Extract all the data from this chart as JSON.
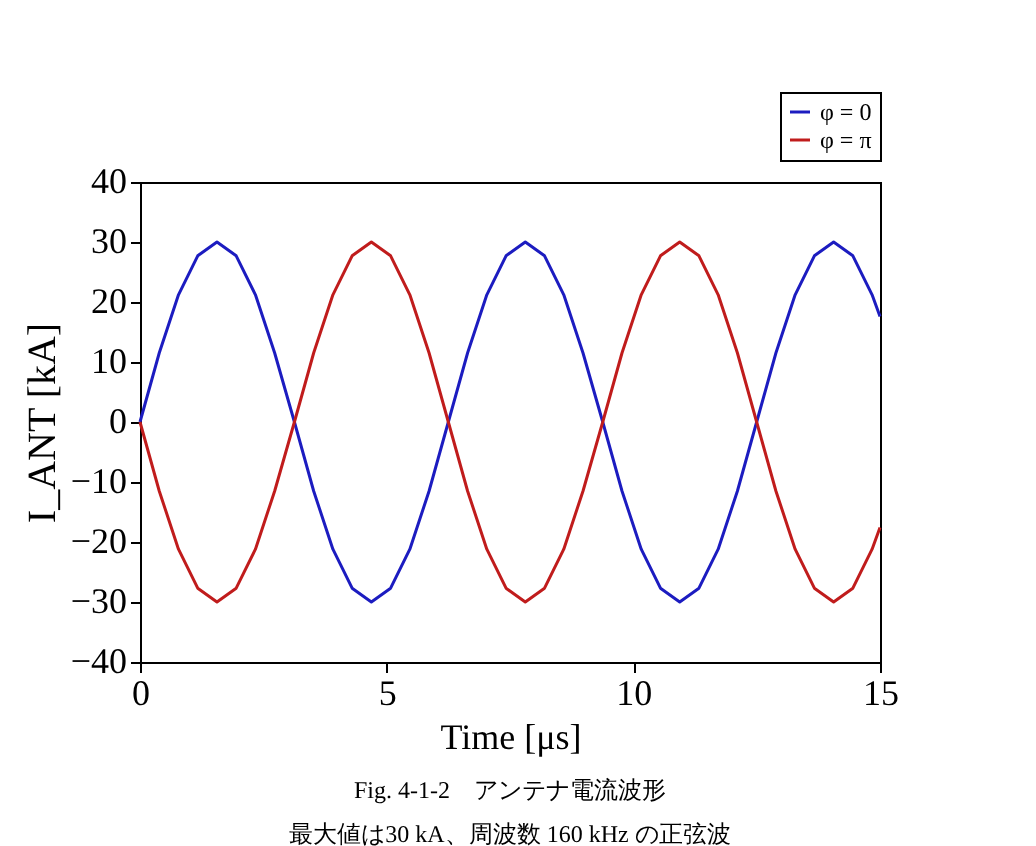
{
  "chart_data": {
    "type": "line",
    "xlabel": "Time [μs]",
    "ylabel": "I_ANT [kA]",
    "x": [
      0,
      0.39,
      0.78,
      1.17,
      1.56,
      1.95,
      2.34,
      2.73,
      3.13,
      3.52,
      3.91,
      4.3,
      4.69,
      5.08,
      5.47,
      5.86,
      6.25,
      6.64,
      7.03,
      7.42,
      7.81,
      8.2,
      8.59,
      8.98,
      9.38,
      9.77,
      10.16,
      10.55,
      10.94,
      11.33,
      11.72,
      12.11,
      12.5,
      12.89,
      13.28,
      13.67,
      14.06,
      14.45,
      14.84,
      15
    ],
    "series": [
      {
        "name": "φ = 0",
        "color": "#1c1cc0",
        "values": [
          0,
          11.5,
          21.2,
          27.7,
          30,
          27.7,
          21.2,
          11.5,
          0,
          -11.5,
          -21.2,
          -27.7,
          -30,
          -27.7,
          -21.2,
          -11.5,
          0,
          11.5,
          21.2,
          27.7,
          30,
          27.7,
          21.2,
          11.5,
          0,
          -11.5,
          -21.2,
          -27.7,
          -30,
          -27.7,
          -21.2,
          -11.5,
          0,
          11.5,
          21.2,
          27.7,
          30,
          27.7,
          21.2,
          17.6
        ]
      },
      {
        "name": "φ = π",
        "color": "#c01c1c",
        "values": [
          0,
          -11.5,
          -21.2,
          -27.7,
          -30,
          -27.7,
          -21.2,
          -11.5,
          0,
          11.5,
          21.2,
          27.7,
          30,
          27.7,
          21.2,
          11.5,
          0,
          -11.5,
          -21.2,
          -27.7,
          -30,
          -27.7,
          -21.2,
          -11.5,
          0,
          11.5,
          21.2,
          27.7,
          30,
          27.7,
          21.2,
          11.5,
          0,
          -11.5,
          -21.2,
          -27.7,
          -30,
          -27.7,
          -21.2,
          -17.6
        ]
      }
    ],
    "xlim": [
      0,
      15
    ],
    "xticks": [
      0,
      5,
      10,
      15
    ],
    "ylim": [
      -40,
      40
    ],
    "yticks": [
      -40,
      -30,
      -20,
      -10,
      0,
      10,
      20,
      30,
      40
    ],
    "grid": false,
    "legend": "top right",
    "marker": "none",
    "line_style": "solid",
    "annotations": [
      "Fig. 4-1-2　アンテナ電流波形",
      "最大値は30 kA、周波数 160 kHz の正弦波"
    ]
  }
}
